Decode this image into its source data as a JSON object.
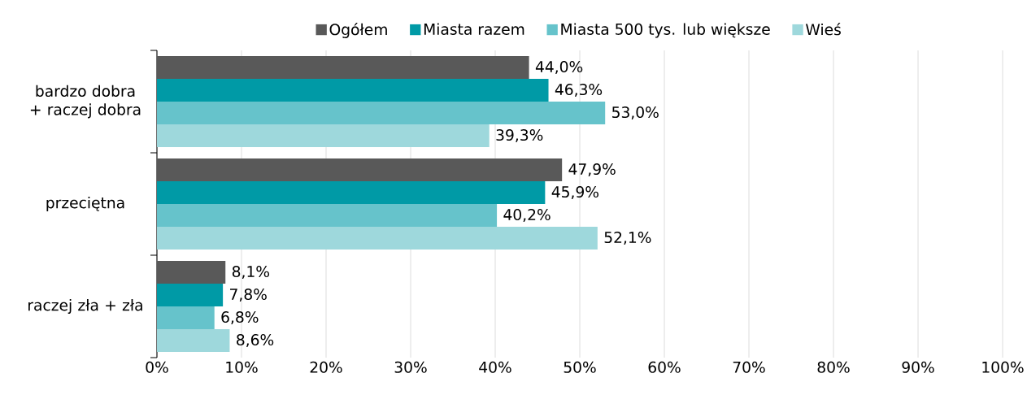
{
  "chart_data": {
    "type": "bar",
    "orientation": "horizontal",
    "categories": [
      "bardzo dobra + raczej dobra",
      "przeciętna",
      "raczej zła + zła"
    ],
    "series": [
      {
        "name": "Ogółem",
        "color": "#595959",
        "values": [
          44.0,
          47.9,
          8.1
        ],
        "value_labels": [
          "44,0%",
          "47,9%",
          "8,1%"
        ]
      },
      {
        "name": "Miasta razem",
        "color": "#009aa6",
        "values": [
          46.3,
          45.9,
          7.8
        ],
        "value_labels": [
          "46,3%",
          "45,9%",
          "7,8%"
        ]
      },
      {
        "name": "Miasta 500 tys. lub większe",
        "color": "#66c3cb",
        "values": [
          53.0,
          40.2,
          6.8
        ],
        "value_labels": [
          "53,0%",
          "40,2%",
          "6,8%"
        ]
      },
      {
        "name": "Wieś",
        "color": "#9ed8dc",
        "values": [
          39.3,
          52.1,
          8.6
        ],
        "value_labels": [
          "39,3%",
          "52,1%",
          "8,6%"
        ]
      }
    ],
    "xlim": [
      0,
      100
    ],
    "xticks": [
      {
        "value": 0,
        "label": "0%"
      },
      {
        "value": 10,
        "label": "10%"
      },
      {
        "value": 20,
        "label": "20%"
      },
      {
        "value": 30,
        "label": "30%"
      },
      {
        "value": 40,
        "label": "40%"
      },
      {
        "value": 50,
        "label": "50%"
      },
      {
        "value": 60,
        "label": "60%"
      },
      {
        "value": 70,
        "label": "70%"
      },
      {
        "value": 80,
        "label": "80%"
      },
      {
        "value": 90,
        "label": "90%"
      },
      {
        "value": 100,
        "label": "100%"
      }
    ],
    "grid": "x",
    "legend": "top"
  }
}
